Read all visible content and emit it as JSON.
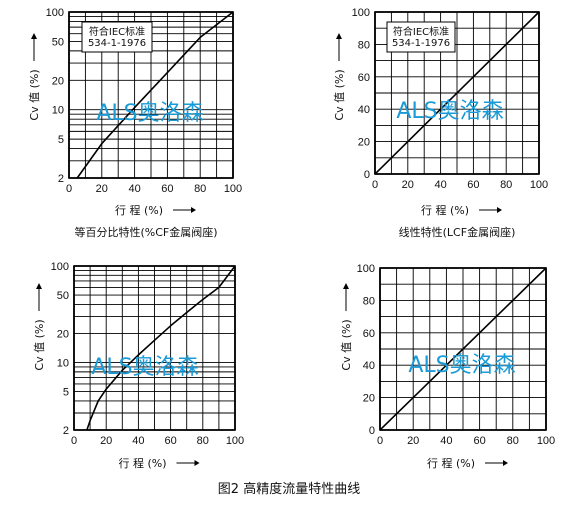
{
  "figure_caption": "图2  高精度流量特性曲线",
  "watermark": "ALS奥洛森",
  "colors": {
    "line": "#000000",
    "grid": "#000000",
    "watermark": "#1a9bd7"
  },
  "chart_data": [
    {
      "type": "line",
      "scale": "log",
      "xlim": [
        0,
        100
      ],
      "ylim": [
        2,
        100
      ],
      "xticks": [
        "0",
        "20",
        "40",
        "60",
        "80",
        "100"
      ],
      "yticks": [
        "2",
        "5",
        "10",
        "20",
        "50",
        "100"
      ],
      "xlabel": "行 程 (%)",
      "ylabel": "Cv 值 (%)",
      "caption": "等百分比特性(%CF金属阀座)",
      "standard": [
        "符合IEC标准",
        "534-1-1976"
      ],
      "series": [
        {
          "x": [
            5,
            20,
            40,
            60,
            80,
            100
          ],
          "y": [
            2,
            4.5,
            10.5,
            24,
            55,
            100
          ]
        }
      ]
    },
    {
      "type": "line",
      "scale": "linear",
      "xlim": [
        0,
        100
      ],
      "ylim": [
        0,
        100
      ],
      "xticks": [
        "0",
        "20",
        "40",
        "60",
        "80",
        "100"
      ],
      "yticks": [
        "0",
        "20",
        "40",
        "60",
        "80",
        "100"
      ],
      "xlabel": "行 程 (%)",
      "ylabel": "Cv 值 (%)",
      "caption": "线性特性(LCF金属阀座)",
      "standard": [
        "符合IEC标准",
        "534-1-1976"
      ],
      "series": [
        {
          "x": [
            0,
            100
          ],
          "y": [
            0,
            100
          ]
        }
      ]
    },
    {
      "type": "line",
      "scale": "log",
      "xlim": [
        0,
        100
      ],
      "ylim": [
        2,
        100
      ],
      "xticks": [
        "0",
        "20",
        "40",
        "60",
        "80",
        "100"
      ],
      "yticks": [
        "2",
        "5",
        "10",
        "20",
        "50",
        "100"
      ],
      "xlabel": "行 程 (%)",
      "ylabel": "Cv 值 (%)",
      "caption": "",
      "standard": [],
      "series": [
        {
          "x": [
            8,
            10,
            15,
            20,
            30,
            40,
            50,
            60,
            70,
            80,
            90,
            100
          ],
          "y": [
            2,
            2.5,
            4,
            5.3,
            8.3,
            12,
            17,
            24,
            33,
            45,
            60,
            100
          ]
        }
      ]
    },
    {
      "type": "line",
      "scale": "linear",
      "xlim": [
        0,
        100
      ],
      "ylim": [
        0,
        100
      ],
      "xticks": [
        "0",
        "20",
        "40",
        "60",
        "80",
        "100"
      ],
      "yticks": [
        "0",
        "20",
        "40",
        "60",
        "80",
        "100"
      ],
      "xlabel": "行 程 (%)",
      "ylabel": "Cv 值 (%)",
      "caption": "",
      "standard": [],
      "series": [
        {
          "x": [
            0,
            100
          ],
          "y": [
            0,
            100
          ]
        }
      ]
    }
  ]
}
